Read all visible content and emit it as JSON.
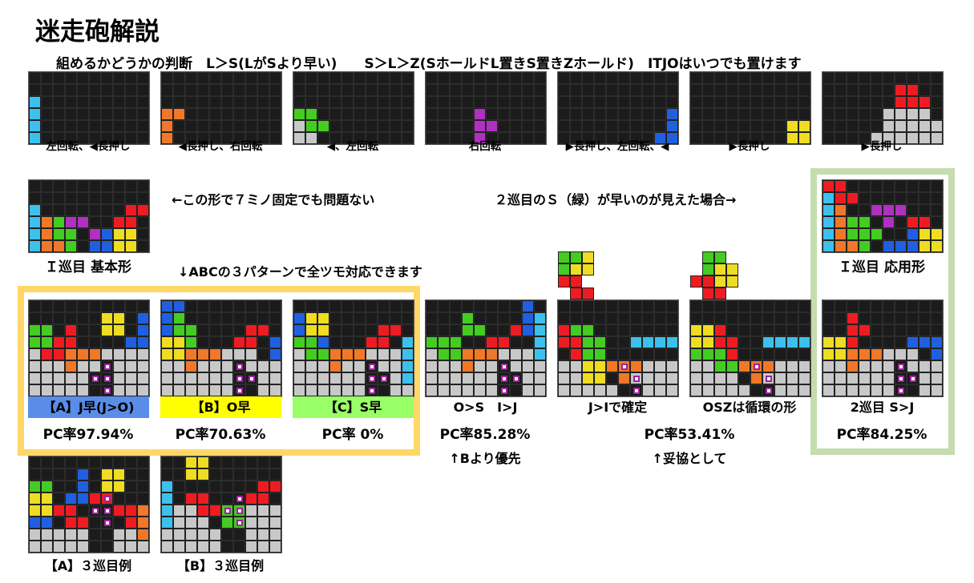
{
  "title": "迷走砲解説",
  "subtitle": "組めるかどうかの判断　L＞S(LがSより早い)　　S＞L＞Z(SホールドL置きS置きZホールド)　ITJOはいつでも置けます",
  "colors": {
    "I": "#3cc0ee",
    "L": "#f07828",
    "S": "#44cc22",
    "T": "#b030c0",
    "J": "#2060e0",
    "O": "#eedd22",
    "Z": "#ee1c22",
    "G": "#c8c8c8",
    "K": "#111111",
    "empty": "#1b1b1b",
    "frame_yellow": "#ffd766",
    "frame_green": "#c5dcae",
    "tag_a": "#5a8de8",
    "tag_b": "#ffff00",
    "tag_c": "#99ff66"
  },
  "steps": [
    {
      "caption": "左回転、◀長押し",
      "rows": [
        "..........",
        "..........",
        "I.........",
        "I.........",
        "I.........",
        "I........."
      ]
    },
    {
      "caption": "◀長押し、右回転",
      "rows": [
        "..........",
        "..........",
        "..........",
        "LL........",
        "L.........",
        "L........."
      ]
    },
    {
      "caption": "◀、左回転",
      "rows": [
        "..........",
        "..........",
        "..........",
        "SS........",
        "GSS.......",
        "GG........"
      ]
    },
    {
      "caption": "右回転",
      "rows": [
        "..........",
        "..........",
        "..........",
        "....T.....",
        "....TT....",
        "....T....."
      ]
    },
    {
      "caption": "▶長押し、左回転、◀",
      "rows": [
        "..........",
        "..........",
        "..........",
        ".........J",
        ".........J",
        "........JJ"
      ]
    },
    {
      "caption": "▶長押し",
      "rows": [
        "..........",
        "..........",
        "..........",
        "..........",
        "........OO",
        "........OO"
      ]
    },
    {
      "caption": "▶長押し",
      "rows": [
        "..........",
        "......ZZ..",
        "......ZZZ.",
        ".....GGGG.",
        ".....GGGGG",
        "....GGGGGG"
      ]
    }
  ],
  "text_left_mid": "←この形で７ミノ固定でも問題ない",
  "text_right_mid": "２巡目のＳ（緑）が早いのが見えた場合→",
  "text_abc": "↓ABCの３パターンで全ツモ対応できます",
  "base": {
    "caption": "Ｉ巡目 基本形",
    "rows": [
      "..........",
      "..........",
      "I.......ZZ",
      "ILSTT..ZZ.",
      "ILSS.TJOO.",
      "ILLS.JJOO."
    ]
  },
  "applied": {
    "caption": "Ｉ巡目 応用形",
    "rows": [
      "ZZ........",
      "IZZ.......",
      "IL..TTT...",
      "ILSS.T.ZZ.",
      "ILSSS..JOO",
      "ILLS.JJJOO"
    ]
  },
  "patterns": [
    {
      "tag": "【A】J早(J>O)",
      "pc": "PC率97.94%",
      "rows": [
        "..........",
        "......OO.J",
        "SS.Z..OO.J",
        "SSZZ....JJ",
        "GZZLLLGGGG",
        "GGGLGG.GGG",
        "GGGGG..GGG",
        "GGGGG..GGG"
      ],
      "dots": [
        [
          5,
          6
        ],
        [
          6,
          5
        ],
        [
          6,
          6
        ],
        [
          7,
          6
        ]
      ]
    },
    {
      "tag": "【B】O早",
      "pc": "PC率70.63%",
      "rows": [
        "JJ........",
        "JS........",
        "JSS....ZZ.",
        "OOS...ZZ.J",
        "OOLLLGGG.J",
        "GGLGGG.GGG",
        "GGGGGG..GG",
        "GGGGGG..GG"
      ],
      "dots": [
        [
          5,
          6
        ],
        [
          6,
          6
        ],
        [
          6,
          7
        ],
        [
          7,
          6
        ]
      ]
    },
    {
      "tag": "【C】S早",
      "pc": "PC率 0%",
      "rows": [
        "..........",
        "JOO.......",
        "JOO....ZZ.",
        "SSJ...ZZ.I",
        "GSSLLLGGGI",
        "GGGLGG.GGI",
        "GGGGGG..GI",
        "GGGGGG..GG"
      ],
      "dots": [
        [
          5,
          6
        ],
        [
          6,
          6
        ],
        [
          6,
          7
        ],
        [
          7,
          6
        ]
      ]
    },
    {
      "tag": "O>S　I>J",
      "pc": "PC率85.28%",
      "note": "↑Bより優先",
      "rows": [
        "........J.",
        "...S....JI",
        "...SS..ZJI",
        "SSS..ZZ..I",
        "GSSLLLGGGI",
        "GGGLGG.GGG",
        "GGGGGG..GG",
        "GGGGGG..GG"
      ],
      "dots": [
        [
          5,
          6
        ],
        [
          6,
          6
        ],
        [
          6,
          7
        ],
        [
          7,
          6
        ]
      ]
    },
    {
      "tag": "J>Iで確定",
      "pc": "",
      "rows": [
        "..........",
        "..........",
        "ZSS.......",
        "ZZSS..IIII",
        ".ZSS......",
        "GGOOLLLGGG",
        "GGOO.LGGGG",
        "GGGGG..GGG"
      ],
      "dots": [
        [
          5,
          5
        ],
        [
          6,
          6
        ],
        [
          7,
          6
        ]
      ],
      "preview": [
        "SSO",
        "SOO",
        "ZZ.",
        ".ZZ"
      ]
    },
    {
      "tag": "OSZは循環の形",
      "pc": "",
      "rows": [
        "..........",
        "..........",
        "OOZ.......",
        "OOZZ..IIII",
        "SSSZ......",
        "GGSSLLLGGG",
        "GGGG.LGGGG",
        "GGGGG..GGG"
      ],
      "dots": [
        [
          5,
          5
        ],
        [
          6,
          6
        ],
        [
          7,
          6
        ]
      ],
      "preview": [
        ".SS",
        ".SOO",
        "ZZOO",
        ".ZZ"
      ]
    },
    {
      "tag": "2巡目 S>J",
      "pc": "PC率84.25%",
      "rows": [
        "..........",
        "..Z.......",
        "..ZZ......",
        "OOZ....JJJ",
        "OOLLLGGG.J",
        "GGLGGG.GGG",
        "GGGGGG..GG",
        "GGGGGG..GG"
      ],
      "dots": [
        [
          5,
          6
        ],
        [
          6,
          6
        ],
        [
          6,
          7
        ],
        [
          7,
          6
        ]
      ]
    }
  ],
  "shared_pc": "PC率53.41%",
  "shared_note": "↑妥協として",
  "examples": [
    {
      "caption": "【A】３巡目例",
      "rows": [
        "..........",
        "....J.OO..",
        "SS..J.OO..",
        "OO.JJZZ...",
        "OOZZ...ZZL",
        "JJ.ZZ...ZL",
        "GGGGG..GGL",
        "GGGGG..GGG"
      ],
      "dots": [
        [
          3,
          6
        ],
        [
          4,
          5
        ],
        [
          4,
          6
        ],
        [
          5,
          6
        ]
      ]
    },
    {
      "caption": "【B】３巡目例",
      "rows": [
        "..OO......",
        "..OO......",
        "I.......ZZ",
        "I.ZZ...ZZ.",
        "IGGZZSSGGG",
        "IGGG.SSGGG",
        "GGGGG..GGG",
        "GGGGG..GGG"
      ],
      "dots": [
        [
          3,
          6
        ],
        [
          4,
          5
        ],
        [
          4,
          6
        ],
        [
          5,
          6
        ]
      ]
    }
  ]
}
